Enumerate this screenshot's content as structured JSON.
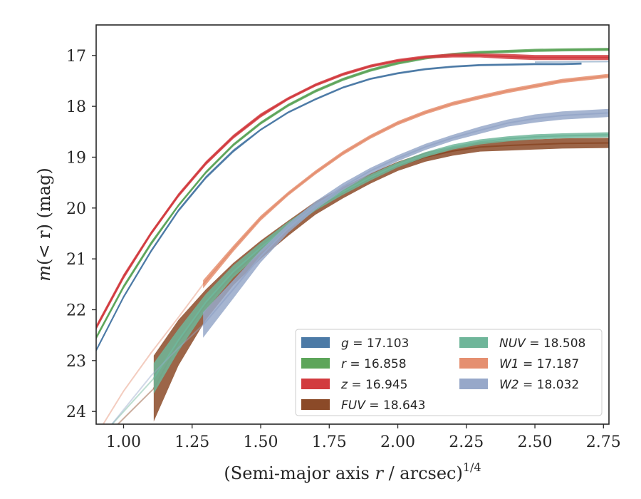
{
  "chart_data": {
    "type": "line",
    "title": "",
    "xlabel": "(Semi-major axis r / arcsec)",
    "xlabel_italic_part": "r",
    "xlabel_superscript": "1/4",
    "ylabel": "m(< r) (mag)",
    "xlim": [
      0.9,
      2.77
    ],
    "ylim": [
      24.25,
      16.4
    ],
    "y_inverted": true,
    "x_ticks": [
      1.0,
      1.25,
      1.5,
      1.75,
      2.0,
      2.25,
      2.5,
      2.75
    ],
    "x_tick_labels": [
      "1.00",
      "1.25",
      "1.50",
      "1.75",
      "2.00",
      "2.25",
      "2.50",
      "2.75"
    ],
    "y_ticks": [
      17,
      18,
      19,
      20,
      21,
      22,
      23,
      24
    ],
    "y_tick_labels": [
      "17",
      "18",
      "19",
      "20",
      "21",
      "22",
      "23",
      "24"
    ],
    "grid": false,
    "legend_position": "bottom-right",
    "legend_columns": 2,
    "series": [
      {
        "name": "g",
        "legend_label": "g = 17.103",
        "color": "#4c7aa6",
        "x": [
          0.9,
          1.0,
          1.1,
          1.2,
          1.3,
          1.4,
          1.5,
          1.6,
          1.7,
          1.8,
          1.9,
          2.0,
          2.1,
          2.2,
          2.3,
          2.4,
          2.5,
          2.6,
          2.67
        ],
        "y": [
          22.8,
          21.75,
          20.85,
          20.05,
          19.4,
          18.88,
          18.46,
          18.12,
          17.86,
          17.63,
          17.46,
          17.35,
          17.27,
          17.22,
          17.19,
          17.18,
          17.17,
          17.17,
          17.16
        ],
        "band": [
          0.03,
          0.03,
          0.03,
          0.03,
          0.03,
          0.03,
          0.02,
          0.02,
          0.02,
          0.02,
          0.02,
          0.02,
          0.02,
          0.02,
          0.02,
          0.02,
          0.02,
          0.02,
          0.02
        ],
        "faint_x": [
          2.5,
          2.77
        ],
        "faint_y": [
          17.13,
          17.12
        ]
      },
      {
        "name": "r",
        "legend_label": "r = 16.858",
        "color": "#5da55a",
        "x": [
          0.9,
          1.0,
          1.1,
          1.2,
          1.3,
          1.4,
          1.5,
          1.6,
          1.7,
          1.8,
          1.9,
          2.0,
          2.1,
          2.2,
          2.3,
          2.4,
          2.5,
          2.6,
          2.77
        ],
        "y": [
          22.55,
          21.55,
          20.7,
          19.95,
          19.3,
          18.76,
          18.33,
          17.98,
          17.7,
          17.47,
          17.29,
          17.15,
          17.05,
          16.98,
          16.94,
          16.92,
          16.9,
          16.89,
          16.88
        ],
        "band": [
          0.04,
          0.04,
          0.04,
          0.03,
          0.03,
          0.03,
          0.03,
          0.03,
          0.03,
          0.03,
          0.03,
          0.03,
          0.03,
          0.03,
          0.03,
          0.03,
          0.03,
          0.03,
          0.03
        ]
      },
      {
        "name": "z",
        "legend_label": "z = 16.945",
        "color": "#d23b3f",
        "x": [
          0.9,
          1.0,
          1.1,
          1.2,
          1.3,
          1.4,
          1.5,
          1.6,
          1.7,
          1.8,
          1.9,
          2.0,
          2.1,
          2.2,
          2.3,
          2.4,
          2.5,
          2.6,
          2.77
        ],
        "y": [
          22.35,
          21.35,
          20.5,
          19.75,
          19.12,
          18.6,
          18.18,
          17.85,
          17.58,
          17.37,
          17.21,
          17.1,
          17.03,
          17.0,
          17.0,
          17.02,
          17.04,
          17.04,
          17.04
        ],
        "band": [
          0.05,
          0.05,
          0.04,
          0.04,
          0.04,
          0.04,
          0.04,
          0.03,
          0.03,
          0.03,
          0.03,
          0.03,
          0.03,
          0.04,
          0.04,
          0.05,
          0.05,
          0.05,
          0.05
        ]
      },
      {
        "name": "FUV",
        "legend_label": "FUV = 18.643",
        "color": "#8b4a28",
        "x": [
          1.11,
          1.2,
          1.3,
          1.4,
          1.5,
          1.6,
          1.7,
          1.8,
          1.9,
          2.0,
          2.1,
          2.2,
          2.3,
          2.4,
          2.5,
          2.6,
          2.77
        ],
        "y": [
          23.55,
          22.65,
          21.9,
          21.3,
          20.82,
          20.4,
          20.0,
          19.7,
          19.42,
          19.18,
          19.0,
          18.88,
          18.8,
          18.77,
          18.75,
          18.73,
          18.72
        ],
        "band": [
          0.65,
          0.45,
          0.3,
          0.22,
          0.18,
          0.15,
          0.13,
          0.11,
          0.1,
          0.09,
          0.09,
          0.09,
          0.09,
          0.1,
          0.1,
          0.1,
          0.1
        ],
        "faint_x": [
          0.97,
          1.11
        ],
        "faint_y": [
          24.3,
          23.55
        ]
      },
      {
        "name": "NUV",
        "legend_label": "NUV = 18.508",
        "color": "#6fb69a",
        "x": [
          1.11,
          1.2,
          1.3,
          1.4,
          1.5,
          1.6,
          1.7,
          1.8,
          1.9,
          2.0,
          2.1,
          2.2,
          2.3,
          2.4,
          2.5,
          2.6,
          2.77
        ],
        "y": [
          23.35,
          22.6,
          21.85,
          21.25,
          20.78,
          20.35,
          19.98,
          19.68,
          19.4,
          19.15,
          18.95,
          18.8,
          18.7,
          18.64,
          18.6,
          18.58,
          18.56
        ],
        "band": [
          0.3,
          0.22,
          0.16,
          0.12,
          0.1,
          0.08,
          0.07,
          0.06,
          0.06,
          0.05,
          0.05,
          0.05,
          0.05,
          0.05,
          0.05,
          0.05,
          0.05
        ],
        "faint_x": [
          0.95,
          1.11
        ],
        "faint_y": [
          24.3,
          23.35
        ]
      },
      {
        "name": "W1",
        "legend_label": "W1 = 17.187",
        "color": "#e58f70",
        "x": [
          1.29,
          1.4,
          1.5,
          1.6,
          1.7,
          1.8,
          1.9,
          2.0,
          2.1,
          2.2,
          2.3,
          2.4,
          2.5,
          2.6,
          2.77
        ],
        "y": [
          21.5,
          20.8,
          20.2,
          19.72,
          19.3,
          18.92,
          18.6,
          18.33,
          18.12,
          17.95,
          17.82,
          17.7,
          17.6,
          17.5,
          17.4
        ],
        "band": [
          0.08,
          0.06,
          0.05,
          0.04,
          0.04,
          0.04,
          0.04,
          0.04,
          0.04,
          0.04,
          0.04,
          0.04,
          0.04,
          0.04,
          0.04
        ],
        "faint_x": [
          0.92,
          1.0,
          1.1,
          1.2,
          1.29
        ],
        "faint_y": [
          24.3,
          23.6,
          22.85,
          22.15,
          21.5
        ]
      },
      {
        "name": "W2",
        "legend_label": "W2 = 18.032",
        "color": "#97a8c9",
        "x": [
          1.29,
          1.4,
          1.5,
          1.6,
          1.7,
          1.8,
          1.9,
          2.0,
          2.1,
          2.2,
          2.3,
          2.4,
          2.5,
          2.6,
          2.77
        ],
        "y": [
          22.3,
          21.6,
          20.95,
          20.4,
          19.95,
          19.58,
          19.27,
          19.02,
          18.8,
          18.62,
          18.47,
          18.33,
          18.24,
          18.18,
          18.13
        ],
        "band": [
          0.25,
          0.18,
          0.12,
          0.09,
          0.08,
          0.07,
          0.06,
          0.06,
          0.06,
          0.06,
          0.07,
          0.07,
          0.08,
          0.08,
          0.08
        ],
        "faint_x": [
          0.95,
          1.1,
          1.2,
          1.29
        ],
        "faint_y": [
          24.3,
          23.3,
          22.75,
          22.3
        ]
      }
    ]
  }
}
